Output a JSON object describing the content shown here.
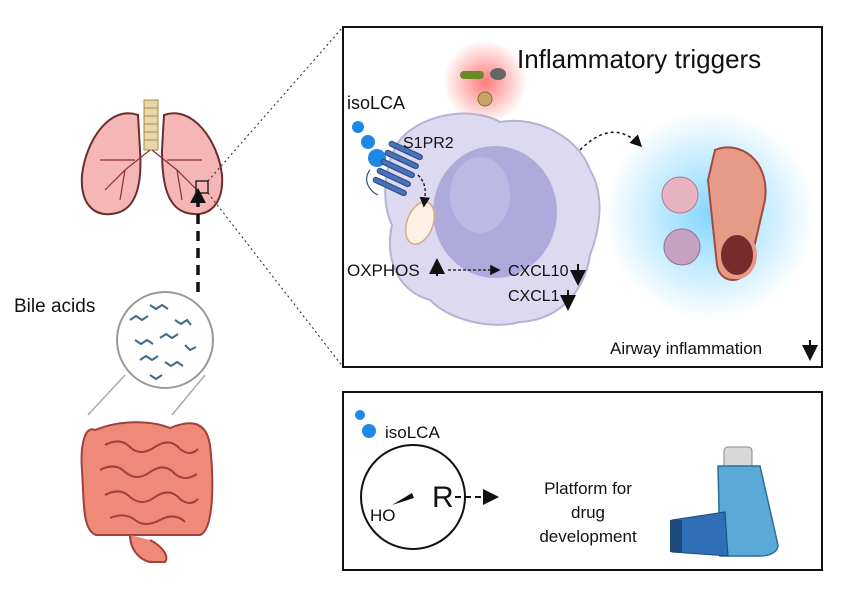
{
  "left_panel": {
    "bile_acids_label": "Bile acids"
  },
  "mechanism_panel": {
    "title": "Inflammatory triggers",
    "ligand_label": "isoLCA",
    "receptor_label": "S1PR2",
    "oxphos_label": "OXPHOS",
    "oxphos_direction": "up",
    "chemokines": [
      {
        "label": "CXCL10",
        "direction": "down"
      },
      {
        "label": "CXCL1",
        "direction": "down"
      }
    ],
    "outcome_label": "Airway inflammation",
    "outcome_direction": "down"
  },
  "drug_panel": {
    "ligand_label": "isoLCA",
    "hydroxyl_label": "HO",
    "r_group_label": "R",
    "platform_lines": [
      "Platform for",
      "drug",
      "development"
    ]
  },
  "colors": {
    "isoLCA_dot": "#1e88e5",
    "receptor": "#4a72b8",
    "cell": "#dcd9f0",
    "nucleus": "#aeaadb",
    "trigger_glow": "#ff6b6b",
    "airway_glow": "#7fd3ff",
    "inhaler_body": "#5aa9d6"
  }
}
